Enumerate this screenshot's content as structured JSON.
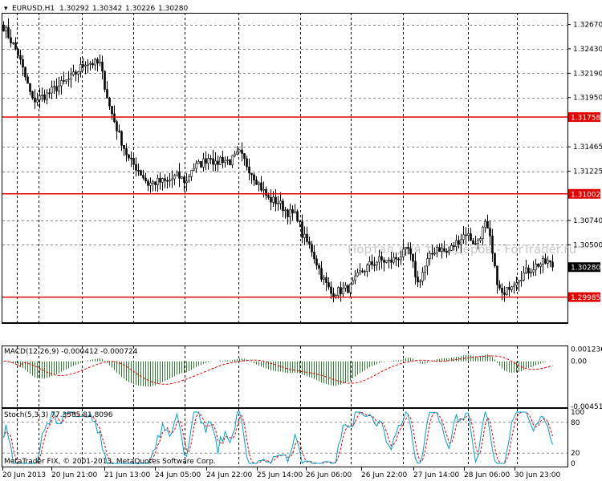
{
  "header": {
    "symbol": "EURUSD,H1",
    "ohlc": [
      "1.30292",
      "1.30342",
      "1.30226",
      "1.30280"
    ]
  },
  "watermark": "Портал для трейдеров - ForTrader.ru",
  "copyright": "MetaTrader FIX, © 2001-2013, MetaQuotes Software Corp.",
  "colors": {
    "candle": "#000000",
    "level_line": "#e00000",
    "level_label_bg": "#e00000",
    "current_price_bg": "#000000",
    "grid": "#000000",
    "macd_hist": "#2e7d32",
    "macd_signal": "#e00000",
    "stoch_main": "#00a0c8",
    "stoch_signal": "#e00000"
  },
  "chart_data": [
    {
      "type": "candlestick",
      "title": "EURUSD,H1",
      "price_ticks": [
        "1.32670",
        "1.32430",
        "1.32190",
        "1.31950",
        "1.31465",
        "1.31225",
        "1.30740",
        "1.30500"
      ],
      "ylim": [
        1.29737,
        1.32785
      ],
      "horizontal_levels": [
        {
          "value": 1.31758,
          "label": "1.31758"
        },
        {
          "value": 1.31002,
          "label": "1.31002"
        },
        {
          "value": 1.29985,
          "label": "1.29985"
        }
      ],
      "current_price": {
        "value": 1.3028,
        "label": "1.30280"
      },
      "x_tick_labels": [
        "20 Jun 2013",
        "20 Jun 21:00",
        "21 Jun 13:00",
        "24 Jun 05:00",
        "24 Jun 22:00",
        "25 Jun 14:00",
        "26 Jun 06:00",
        "26 Jun 22:00",
        "27 Jun 14:00",
        "28 Jun 06:00",
        "30 Jun 23:00"
      ],
      "close_path": [
        [
          0,
          1.3265
        ],
        [
          6,
          1.3238
        ],
        [
          12,
          1.3192
        ],
        [
          18,
          1.3198
        ],
        [
          22,
          1.3205
        ],
        [
          28,
          1.3214
        ],
        [
          34,
          1.323
        ],
        [
          40,
          1.3228
        ],
        [
          44,
          1.3186
        ],
        [
          48,
          1.3158
        ],
        [
          52,
          1.3134
        ],
        [
          56,
          1.3124
        ],
        [
          60,
          1.311
        ],
        [
          64,
          1.3112
        ],
        [
          68,
          1.3112
        ],
        [
          72,
          1.3118
        ],
        [
          76,
          1.3112
        ],
        [
          78,
          1.3125
        ],
        [
          82,
          1.313
        ],
        [
          86,
          1.3138
        ],
        [
          88,
          1.3128
        ],
        [
          90,
          1.3135
        ],
        [
          94,
          1.3132
        ],
        [
          98,
          1.314
        ],
        [
          102,
          1.3125
        ],
        [
          106,
          1.311
        ],
        [
          110,
          1.3095
        ],
        [
          114,
          1.3092
        ],
        [
          118,
          1.3082
        ],
        [
          122,
          1.3078
        ],
        [
          124,
          1.306
        ],
        [
          128,
          1.3045
        ],
        [
          132,
          1.302
        ],
        [
          136,
          1.3002
        ],
        [
          140,
          1.3005
        ],
        [
          144,
          1.3008
        ],
        [
          148,
          1.3022
        ],
        [
          152,
          1.303
        ],
        [
          156,
          1.3035
        ],
        [
          160,
          1.3033
        ],
        [
          164,
          1.3038
        ],
        [
          168,
          1.3045
        ],
        [
          170,
          1.303
        ],
        [
          172,
          1.3012
        ],
        [
          176,
          1.3034
        ],
        [
          180,
          1.3048
        ],
        [
          184,
          1.3042
        ],
        [
          188,
          1.3052
        ],
        [
          192,
          1.3062
        ],
        [
          196,
          1.305
        ],
        [
          200,
          1.307
        ],
        [
          202,
          1.3055
        ],
        [
          204,
          1.3025
        ],
        [
          206,
          1.3005
        ],
        [
          208,
          1.2999
        ],
        [
          210,
          1.301
        ],
        [
          214,
          1.3018
        ],
        [
          218,
          1.3025
        ],
        [
          222,
          1.3031
        ],
        [
          226,
          1.3033
        ],
        [
          228,
          1.3028
        ]
      ]
    },
    {
      "type": "macd",
      "title": "MACD(12,26,9) -0.000412 -0.000724",
      "ticks": [
        "0.001236",
        "0.00",
        "-0.004516"
      ],
      "ylim": [
        -0.0046,
        0.0015
      ]
    },
    {
      "type": "stochastic",
      "title": "Stoch(5,3,3) 77.3585 81.8096",
      "ticks": [
        "100",
        "80",
        "20",
        "0"
      ],
      "ylim": [
        0,
        100
      ]
    }
  ]
}
